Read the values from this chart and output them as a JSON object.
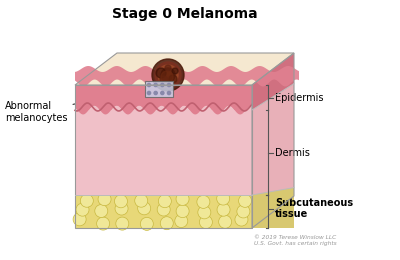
{
  "title": "Stage 0 Melanoma",
  "title_fontsize": 10,
  "title_fontweight": "bold",
  "labels": {
    "abnormal_melanocytes": "Abnormal\nmelanocytes",
    "epidermis": "Epidermis",
    "dermis": "Dermis",
    "subcutaneous": "Subcutaneous\ntissue"
  },
  "colors": {
    "epidermis_pink": "#E08090",
    "dermis": "#F0C0C8",
    "subcutaneous_yellow": "#E8D878",
    "subcutaneous_cell": "#F0E898",
    "top_surface_cream": "#F5E8D0",
    "right_face_epi": "#D07080",
    "right_face_derm": "#E8B0B8",
    "right_face_sub": "#D8C870",
    "melanoma_1": "#5A2010",
    "melanoma_2": "#7B3520",
    "melanoma_3": "#9B5535",
    "melanocyte_fill": "#C8D0E8",
    "melanocyte_dot": "#8888AA",
    "bracket_line": "#555555",
    "background": "#FFFFFF"
  },
  "copyright": "© 2019 Terese Winslow LLC\nU.S. Govt. has certain rights"
}
